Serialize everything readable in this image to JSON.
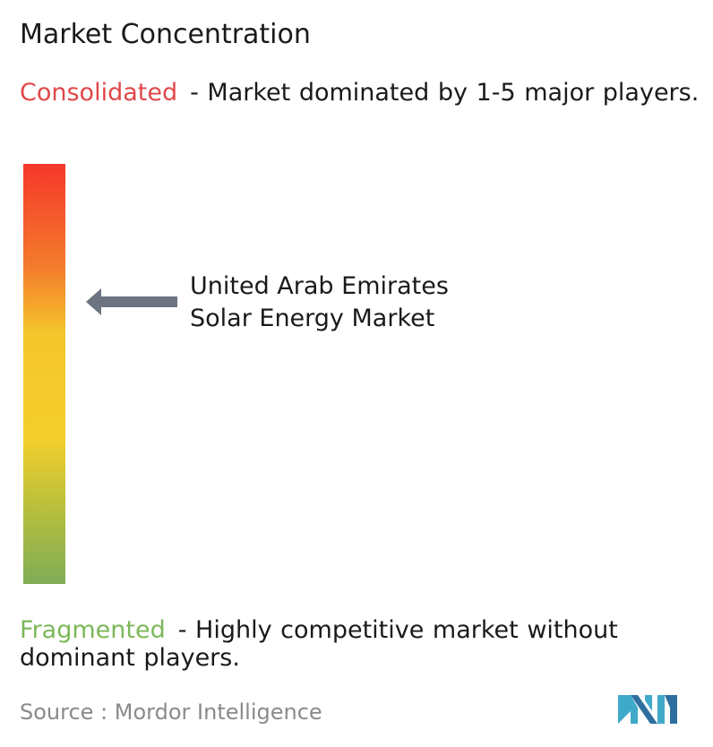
{
  "title": "Market Concentration",
  "consolidated": {
    "term": "Consolidated",
    "description": "- Market dominated by 1-5 major players."
  },
  "fragmented": {
    "term": "Fragmented",
    "description": "- Highly competitive market without dominant players."
  },
  "marker": {
    "label_line1": "United Arab Emirates",
    "label_line2": "Solar Energy Market",
    "level_from_fragmented": 0.68
  },
  "source": "Source :  Mordor Intelligence",
  "colors": {
    "consolidated": "#e0484a",
    "fragmented": "#7cb85a",
    "arrow": "#6b7480",
    "logo_primary": "#3fa9c9",
    "logo_secondary": "#2f6f9f"
  },
  "logo_icon": "mordor-intelligence-logo"
}
